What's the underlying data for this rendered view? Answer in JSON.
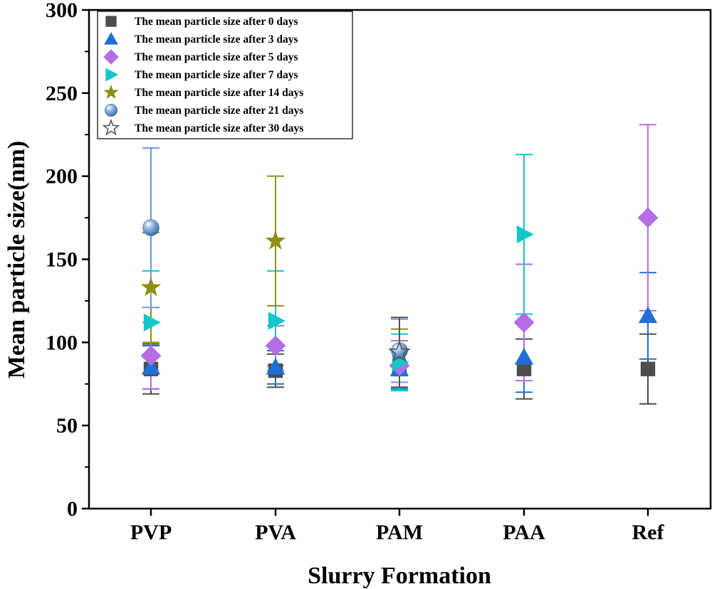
{
  "chart_data": {
    "type": "scatter",
    "xlabel": "Slurry Formation",
    "ylabel": "Mean particle size(nm)",
    "ylim": [
      0,
      300
    ],
    "yticks": [
      0,
      50,
      100,
      150,
      200,
      250,
      300
    ],
    "categories": [
      "PVP",
      "PVA",
      "PAM",
      "PAA",
      "Ref"
    ],
    "grid": false,
    "legend_position": "top-left",
    "series": [
      {
        "name": "The mean particle size after 0 days",
        "marker": "square",
        "color": "#4d4d4d",
        "values": [
          84,
          83,
          84,
          84,
          84
        ],
        "errors": [
          15,
          10,
          11,
          18,
          21
        ]
      },
      {
        "name": "The mean particle size after 3 days",
        "marker": "triangle-up",
        "color": "#1f6fd6",
        "values": [
          85,
          85,
          84,
          91,
          116
        ],
        "errors": [
          13,
          10,
          12,
          21,
          26
        ]
      },
      {
        "name": "The mean particle size after 5 days",
        "marker": "diamond",
        "color": "#b36ee6",
        "values": [
          92,
          98,
          86,
          112,
          175
        ],
        "errors": [
          20,
          12,
          15,
          35,
          56
        ]
      },
      {
        "name": "The mean particle size after 7 days",
        "marker": "triangle-right",
        "color": "#12c7c7",
        "values": [
          112,
          113,
          88,
          165,
          0
        ],
        "errors": [
          31,
          30,
          17,
          48,
          0
        ]
      },
      {
        "name": "The mean particle size after 14 days",
        "marker": "star",
        "color": "#8f8f12",
        "values": [
          133,
          161,
          94,
          0,
          0
        ],
        "errors": [
          33,
          39,
          14,
          0,
          0
        ]
      },
      {
        "name": "The mean particle size after 21 days",
        "marker": "sphere",
        "color": "#6c9bd6",
        "values": [
          169,
          0,
          95,
          0,
          0
        ],
        "errors": [
          48,
          0,
          19,
          0,
          0
        ]
      },
      {
        "name": "The mean particle size after 30 days",
        "marker": "star-open",
        "color": "#555555",
        "values": [
          0,
          0,
          94,
          0,
          0
        ],
        "errors": [
          0,
          0,
          21,
          0,
          0
        ]
      }
    ]
  }
}
